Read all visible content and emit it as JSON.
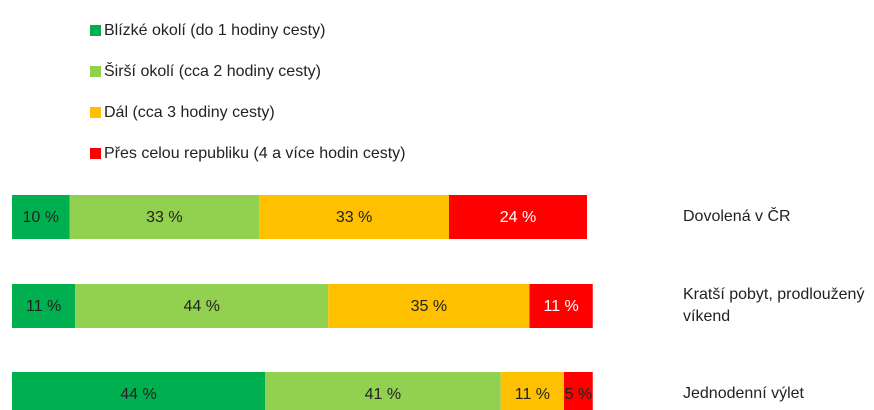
{
  "chart_data": {
    "type": "bar",
    "orientation": "horizontal",
    "stacked": true,
    "categories": [
      "Dovolená v ČR",
      "Kratší pobyt, prodloužený víkend",
      "Jednodenní výlet"
    ],
    "xlim": [
      0,
      100
    ],
    "series": [
      {
        "name": "Blízké okolí (do 1 hodiny cesty)",
        "color": "#00b050",
        "values": [
          10,
          11,
          44
        ],
        "value_labels": [
          "10 %",
          "11 %",
          "44 %"
        ]
      },
      {
        "name": "Širší okolí (cca 2 hodiny cesty)",
        "color": "#92d050",
        "values": [
          33,
          44,
          41
        ],
        "value_labels": [
          "33 %",
          "44 %",
          "41 %"
        ]
      },
      {
        "name": "Dál (cca 3 hodiny cesty)",
        "color": "#ffc000",
        "values": [
          33,
          35,
          11
        ],
        "value_labels": [
          "33 %",
          "35 %",
          "11 %"
        ]
      },
      {
        "name": "Přes celou republiku (4 a více hodin cesty)",
        "color": "#ff0000",
        "values": [
          24,
          11,
          5
        ],
        "value_labels": [
          "24 %",
          "11 %",
          "5 %"
        ]
      }
    ],
    "legend": "top-left"
  }
}
